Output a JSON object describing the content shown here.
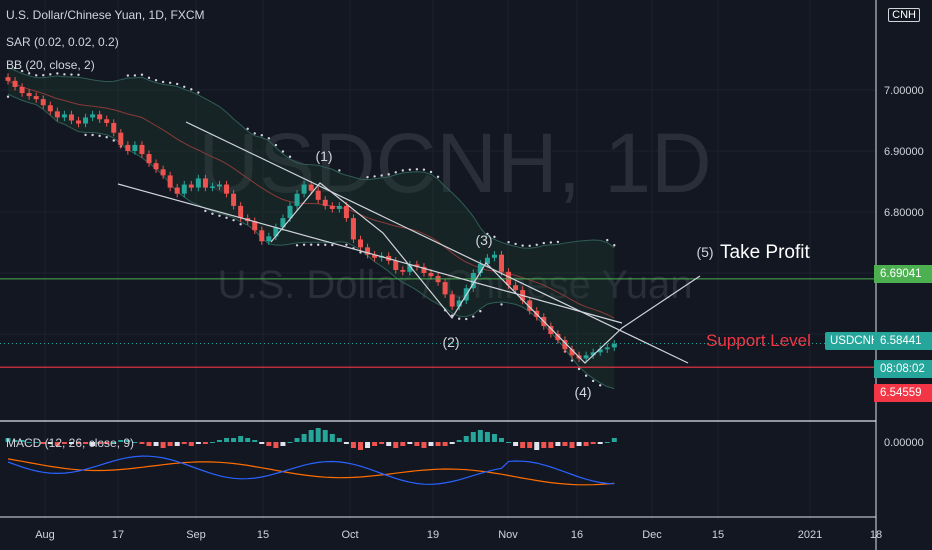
{
  "header": {
    "title": "U.S. Dollar/Chinese Yuan, 1D, FXCM",
    "sar": "SAR (0.02, 0.02, 0.2)",
    "bb": "BB (20, close, 2)",
    "macd": "MACD (12, 26, close, 9)",
    "currency": "CNH"
  },
  "watermark": {
    "symbol": "USDCNH, 1D",
    "name": "U.S. Dollar / Chinese Yuan"
  },
  "annotations": {
    "wave1": "(1)",
    "wave2": "(2)",
    "wave3": "(3)",
    "wave4": "(4)",
    "wave5": "(5)",
    "take_profit": "Take Profit",
    "support": "Support Level"
  },
  "price_badges": {
    "resistance": "6.69041",
    "symbol_label": "USDCNH",
    "last": "6.58441",
    "countdown": "08:08:02",
    "support": "6.54559"
  },
  "colors": {
    "background": "#131722",
    "up": "#26a69a",
    "down": "#ef5350",
    "green_line": "#4caf50",
    "support_line": "#f23645",
    "text": "#d1d4dc",
    "macd": "#2962ff",
    "signal": "#ff6d00"
  },
  "chart_data": {
    "type": "candlestick",
    "symbol": "USDCNH",
    "interval": "1D",
    "y_axis": {
      "ticks": [
        "7.00000",
        "6.90000",
        "6.80000"
      ],
      "ylim": [
        6.51,
        7.13
      ]
    },
    "x_axis": {
      "ticks": [
        "Aug",
        "17",
        "Sep",
        "15",
        "Oct",
        "19",
        "Nov",
        "16",
        "Dec",
        "15",
        "2021",
        "18"
      ]
    },
    "levels": {
      "resistance": 6.69041,
      "support": 6.54559,
      "last": 6.58441
    },
    "close": [
      7.015,
      7.005,
      6.995,
      6.99,
      6.985,
      6.975,
      6.965,
      6.955,
      6.96,
      6.95,
      6.945,
      6.955,
      6.96,
      6.952,
      6.946,
      6.93,
      6.91,
      6.9,
      6.91,
      6.895,
      6.88,
      6.87,
      6.86,
      6.84,
      6.83,
      6.845,
      6.84,
      6.855,
      6.84,
      6.842,
      6.845,
      6.83,
      6.81,
      6.79,
      6.785,
      6.77,
      6.752,
      6.76,
      6.775,
      6.79,
      6.81,
      6.83,
      6.845,
      6.835,
      6.82,
      6.81,
      6.805,
      6.81,
      6.79,
      6.755,
      6.742,
      6.73,
      6.725,
      6.728,
      6.72,
      6.705,
      6.702,
      6.714,
      6.71,
      6.7,
      6.695,
      6.685,
      6.665,
      6.645,
      6.655,
      6.675,
      6.7,
      6.715,
      6.725,
      6.73,
      6.702,
      6.68,
      6.672,
      6.655,
      6.638,
      6.628,
      6.613,
      6.6,
      6.59,
      6.575,
      6.565,
      6.56,
      6.565,
      6.57,
      6.575,
      6.578,
      6.584
    ],
    "macd_histogram": [
      0.002,
      0.001,
      0.001,
      0.0,
      0.0,
      -0.001,
      -0.001,
      -0.002,
      -0.001,
      -0.001,
      -0.001,
      -0.001,
      -0.002,
      -0.001,
      -0.001,
      0.0,
      0.001,
      0.001,
      0.0,
      -0.001,
      -0.002,
      -0.002,
      -0.003,
      -0.002,
      -0.002,
      -0.001,
      -0.002,
      -0.001,
      -0.001,
      0.0,
      0.001,
      0.002,
      0.002,
      0.003,
      0.002,
      0.001,
      -0.001,
      -0.002,
      -0.003,
      -0.002,
      0.0,
      0.002,
      0.004,
      0.006,
      0.007,
      0.006,
      0.004,
      0.002,
      -0.001,
      -0.003,
      -0.004,
      -0.003,
      -0.002,
      -0.001,
      -0.002,
      -0.003,
      -0.002,
      -0.001,
      -0.002,
      -0.003,
      -0.002,
      -0.002,
      -0.002,
      -0.001,
      0.001,
      0.003,
      0.005,
      0.006,
      0.005,
      0.004,
      0.002,
      0.0,
      -0.002,
      -0.003,
      -0.003,
      -0.004,
      -0.003,
      -0.003,
      -0.002,
      -0.002,
      -0.003,
      -0.002,
      -0.002,
      -0.001,
      -0.001,
      0.0,
      0.002
    ],
    "macd_axis_label": "0.00000"
  }
}
